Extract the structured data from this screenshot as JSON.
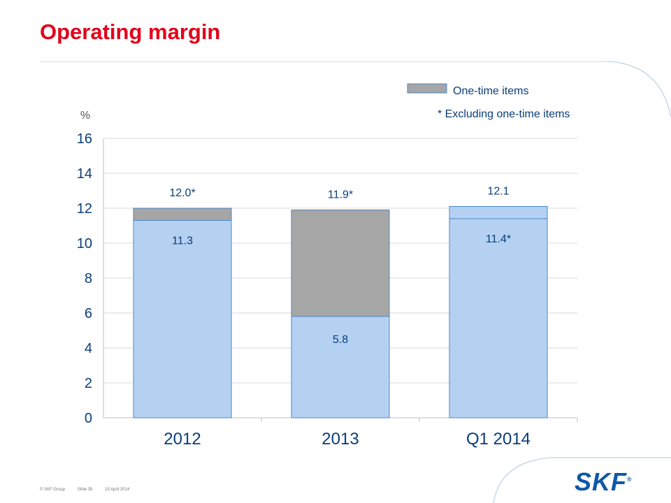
{
  "header": {
    "title": "Operating margin"
  },
  "footer": {
    "copyright": "© SKF Group",
    "slide": "Slide 35",
    "date": "15 April 2014"
  },
  "logo": {
    "text": "SKF",
    "mark": "®"
  },
  "colors": {
    "title": "#e2001a",
    "base": "#b5d1f2",
    "one_time": "#a6a6a6",
    "outline": "#4a86c8",
    "logo": "#0f58a8"
  },
  "chart_data": {
    "type": "bar",
    "stacked": true,
    "categories": [
      "2012",
      "2013",
      "Q1 2014"
    ],
    "series": [
      {
        "name": "",
        "values": [
          11.3,
          5.8,
          11.4
        ]
      },
      {
        "name": "One-time items",
        "values": [
          0.7,
          6.1,
          0.7
        ]
      }
    ],
    "series_colors": [
      "#b5d1f2",
      "#a6a6a6",
      "#b5d1f2"
    ],
    "top_segment_colors": [
      "#a6a6a6",
      "#a6a6a6",
      "#b5d1f2"
    ],
    "inner_labels": [
      "11.3",
      "5.8",
      "11.4*"
    ],
    "total_labels": [
      "12.0*",
      "11.9*",
      "12.1"
    ],
    "ylabel": "%",
    "yticks": [
      0,
      2,
      4,
      6,
      8,
      10,
      12,
      14,
      16
    ],
    "ylim": [
      0,
      16
    ],
    "grid": true,
    "legend": {
      "position": "top-right",
      "entries": [
        "One-time items"
      ]
    },
    "note": "*  Excluding one-time items"
  }
}
